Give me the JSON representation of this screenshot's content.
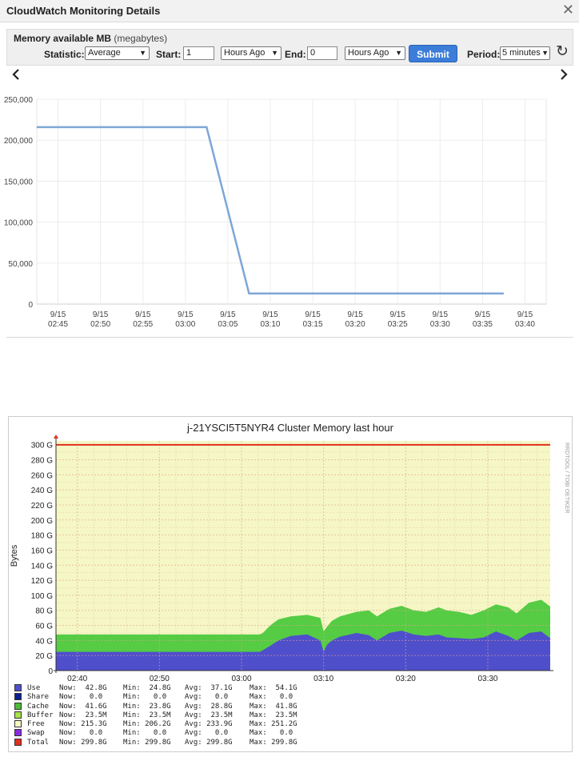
{
  "window": {
    "title": "CloudWatch Monitoring Details",
    "close_label": "✕"
  },
  "controls": {
    "metric_name": "Memory available MB",
    "metric_unit": "(megabytes)",
    "statistic_label": "Statistic:",
    "statistic_value": "Average",
    "start_label": "Start:",
    "start_value": "1",
    "start_unit": "Hours Ago",
    "end_label": "End:",
    "end_value": "0",
    "end_unit": "Hours Ago",
    "submit_label": "Submit",
    "period_label": "Period:",
    "period_value": "5 minutes",
    "refresh_icon": "refresh-icon",
    "prev_icon": "chevron-left-icon",
    "next_icon": "chevron-right-icon",
    "prev_glyph": "‹",
    "next_glyph": "›"
  },
  "chart_data": [
    {
      "type": "line",
      "y_tick_labels": [
        "250,000",
        "200,000",
        "150,000",
        "100,000",
        "50,000",
        "0"
      ],
      "y_ticks": [
        250000,
        200000,
        150000,
        100000,
        50000,
        0
      ],
      "ylim": [
        0,
        250000
      ],
      "x_tick_labels": [
        [
          "9/15",
          "02:45"
        ],
        [
          "9/15",
          "02:50"
        ],
        [
          "9/15",
          "02:55"
        ],
        [
          "9/15",
          "03:00"
        ],
        [
          "9/15",
          "03:05"
        ],
        [
          "9/15",
          "03:10"
        ],
        [
          "9/15",
          "03:15"
        ],
        [
          "9/15",
          "03:20"
        ],
        [
          "9/15",
          "03:25"
        ],
        [
          "9/15",
          "03:30"
        ],
        [
          "9/15",
          "03:35"
        ],
        [
          "9/15",
          "03:40"
        ]
      ],
      "xlim_minutes": [
        -2.5,
        57.5
      ],
      "grid": true,
      "line_color": "#7ea6d8",
      "series": [
        {
          "x_minutes": [
            -2.5,
            17.5,
            22.5,
            52.5
          ],
          "values": [
            216000,
            216000,
            13000,
            13000
          ]
        }
      ]
    },
    {
      "type": "area",
      "title": "j-21YSCI5T5NYR4 Cluster Memory last hour",
      "ylabel": "Bytes",
      "side_label": "RRDTOOL / TOBI OETIKER",
      "y_tick_labels": [
        "300 G",
        "280 G",
        "260 G",
        "240 G",
        "220 G",
        "200 G",
        "180 G",
        "160 G",
        "140 G",
        "120 G",
        "100 G",
        "80 G",
        "60 G",
        "40 G",
        "20 G",
        "0"
      ],
      "y_ticks": [
        300,
        280,
        260,
        240,
        220,
        200,
        180,
        160,
        140,
        120,
        100,
        80,
        60,
        40,
        20,
        0
      ],
      "ylim": [
        0,
        305
      ],
      "x_tick_labels": [
        "02:40",
        "02:50",
        "03:00",
        "03:10",
        "03:20",
        "03:30"
      ],
      "x_ticks_minutes": [
        0,
        10,
        20,
        30,
        40,
        50
      ],
      "xlim_minutes": [
        -2.6,
        57.6
      ],
      "colors": {
        "use": "#4f4fcc",
        "cache": "#55cc44",
        "free": "#f5f7c4",
        "total": "#e03020",
        "plot_bg": "#f8f8d8"
      },
      "x_minutes": [
        -2.6,
        22.2,
        22.6,
        23.5,
        24.5,
        26,
        28,
        29.6,
        30.0,
        30.4,
        31,
        32,
        34,
        35.5,
        36.5,
        38,
        39.5,
        41,
        42.5,
        44,
        45,
        46.5,
        48,
        49.5,
        51,
        52.5,
        53.5,
        55,
        56.5,
        57.6
      ],
      "use": [
        24.8,
        24.8,
        27,
        33,
        40,
        46,
        48,
        40,
        25,
        34,
        40,
        45,
        50,
        47,
        40,
        50,
        53,
        48,
        46,
        48,
        44,
        43,
        42,
        44,
        52,
        46,
        40,
        50,
        52,
        43
      ],
      "cache": [
        48,
        48,
        50,
        60,
        68,
        72,
        74,
        70,
        52,
        58,
        66,
        72,
        78,
        80,
        72,
        82,
        86,
        80,
        78,
        84,
        80,
        78,
        74,
        80,
        88,
        84,
        76,
        90,
        94,
        85
      ],
      "total": 299.8,
      "legend": [
        {
          "label": "Use",
          "now": "Now:  42.8G",
          "min": "Min:  24.8G",
          "avg": "Avg:  37.1G",
          "max": "Max:  54.1G",
          "color": "#4f4fcc"
        },
        {
          "label": "Share",
          "now": "Now:   0.0",
          "min": "Min:   0.0",
          "avg": "Avg:   0.0",
          "max": "Max:   0.0",
          "color": "#0b1f8f"
        },
        {
          "label": "Cache",
          "now": "Now:  41.6G",
          "min": "Min:  23.8G",
          "avg": "Avg:  28.8G",
          "max": "Max:  41.8G",
          "color": "#4dbb3a"
        },
        {
          "label": "Buffer",
          "now": "Now:  23.5M",
          "min": "Min:  23.5M",
          "avg": "Avg:  23.5M",
          "max": "Max:  23.5M",
          "color": "#a6e24a"
        },
        {
          "label": "Free",
          "now": "Now: 215.3G",
          "min": "Min: 206.2G",
          "avg": "Avg: 233.9G",
          "max": "Max: 251.2G",
          "color": "#f5f7c4"
        },
        {
          "label": "Swap",
          "now": "Now:   0.0",
          "min": "Min:   0.0",
          "avg": "Avg:   0.0",
          "max": "Max:   0.0",
          "color": "#8a2be2"
        },
        {
          "label": "Total",
          "now": "Now: 299.8G",
          "min": "Min: 299.8G",
          "avg": "Avg: 299.8G",
          "max": "Max: 299.8G",
          "color": "#e03020"
        }
      ]
    }
  ]
}
